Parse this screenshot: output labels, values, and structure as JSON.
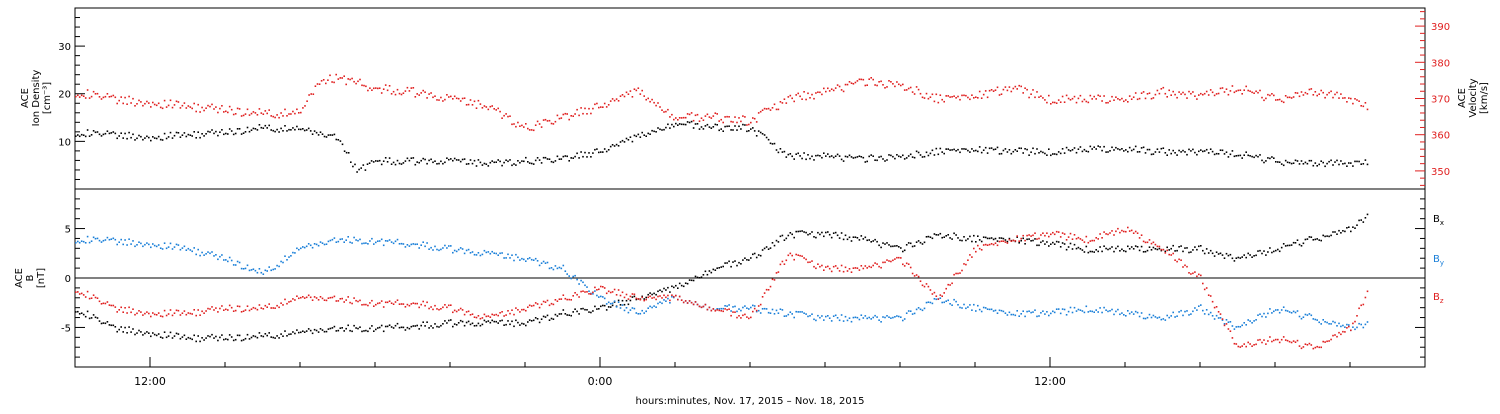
{
  "chart_data": [
    {
      "type": "scatter",
      "panel": "top",
      "ylabel_left": [
        "ACE",
        "Ion Density",
        "[cm⁻³]"
      ],
      "ylabel_right": [
        "ACE",
        "Velocity",
        "[km/s]"
      ],
      "yticks_left": [
        "10",
        "20",
        "30"
      ],
      "yticks_right": [
        "350",
        "360",
        "370",
        "380",
        "390"
      ],
      "ylim_left": [
        0,
        38
      ],
      "ylim_right": [
        345,
        395
      ],
      "series": [
        {
          "axis": "left",
          "color": "#000000",
          "points": [
            [
              0,
              12
            ],
            [
              1,
              11.5
            ],
            [
              2,
              11
            ],
            [
              3,
              11.5
            ],
            [
              4,
              12
            ],
            [
              5,
              13
            ],
            [
              6,
              12.5
            ],
            [
              7,
              11
            ],
            [
              7.5,
              4
            ],
            [
              8,
              6
            ],
            [
              9,
              6
            ],
            [
              10,
              6
            ],
            [
              11,
              5.5
            ],
            [
              12,
              6
            ],
            [
              13,
              6.5
            ],
            [
              14,
              8
            ],
            [
              15,
              11
            ],
            [
              16,
              14
            ],
            [
              17,
              13
            ],
            [
              18,
              13
            ],
            [
              19,
              7
            ],
            [
              20,
              7
            ],
            [
              21,
              6.5
            ],
            [
              22,
              7
            ],
            [
              23,
              8
            ],
            [
              24,
              8.5
            ],
            [
              25,
              8
            ],
            [
              26,
              8
            ],
            [
              27,
              8.5
            ],
            [
              28,
              8.5
            ],
            [
              29,
              8
            ],
            [
              30,
              8
            ],
            [
              31,
              7.5
            ],
            [
              32,
              6
            ],
            [
              33,
              5.5
            ],
            [
              34,
              5.5
            ],
            [
              34.5,
              6
            ]
          ]
        },
        {
          "axis": "right",
          "color": "#e02020",
          "points": [
            [
              0,
              372
            ],
            [
              1,
              370
            ],
            [
              2,
              369
            ],
            [
              3,
              368
            ],
            [
              4,
              367
            ],
            [
              5,
              366
            ],
            [
              6,
              366
            ],
            [
              6.5,
              375
            ],
            [
              7,
              376
            ],
            [
              8,
              373
            ],
            [
              9,
              372
            ],
            [
              10,
              370
            ],
            [
              11,
              368
            ],
            [
              12,
              362
            ],
            [
              13,
              365
            ],
            [
              14,
              368
            ],
            [
              15,
              372
            ],
            [
              16,
              365
            ],
            [
              17,
              365
            ],
            [
              18,
              364
            ],
            [
              19,
              370
            ],
            [
              20,
              372
            ],
            [
              21,
              375
            ],
            [
              22,
              374
            ],
            [
              23,
              370
            ],
            [
              24,
              371
            ],
            [
              25,
              373
            ],
            [
              26,
              370
            ],
            [
              27,
              370
            ],
            [
              28,
              370
            ],
            [
              29,
              372
            ],
            [
              30,
              371
            ],
            [
              31,
              373
            ],
            [
              32,
              370
            ],
            [
              33,
              372
            ],
            [
              34,
              370
            ],
            [
              34.5,
              368
            ]
          ]
        }
      ]
    },
    {
      "type": "scatter",
      "panel": "bottom",
      "ylabel_left": [
        "ACE",
        "B",
        "[nT]"
      ],
      "yticks_left": [
        "-5",
        "0",
        "5"
      ],
      "ylim": [
        -9,
        9
      ],
      "xlabel": "hours:minutes, Nov. 17, 2015 – Nov. 18, 2015",
      "xticks": [
        "12:00",
        "0:00",
        "12:00"
      ],
      "xtick_hours": [
        2,
        14,
        26
      ],
      "xlim_hours": [
        0,
        36
      ],
      "legend_placement": "right",
      "series": [
        {
          "name": "B",
          "sub": "x",
          "color": "#000000",
          "points": [
            [
              0,
              -3
            ],
            [
              1,
              -5
            ],
            [
              2,
              -5.5
            ],
            [
              3,
              -6
            ],
            [
              4,
              -6
            ],
            [
              5,
              -5.8
            ],
            [
              6,
              -5.5
            ],
            [
              7,
              -5
            ],
            [
              8,
              -5
            ],
            [
              9,
              -4.8
            ],
            [
              10,
              -4.5
            ],
            [
              11,
              -4.5
            ],
            [
              12,
              -4.5
            ],
            [
              13,
              -3.5
            ],
            [
              14,
              -3
            ],
            [
              15,
              -2
            ],
            [
              16,
              -1
            ],
            [
              17,
              1
            ],
            [
              18,
              2
            ],
            [
              19,
              4.5
            ],
            [
              20,
              4.5
            ],
            [
              21,
              4
            ],
            [
              22,
              3
            ],
            [
              23,
              4.5
            ],
            [
              24,
              4
            ],
            [
              25,
              4
            ],
            [
              26,
              3.5
            ],
            [
              27,
              3
            ],
            [
              28,
              3
            ],
            [
              29,
              3
            ],
            [
              30,
              3
            ],
            [
              31,
              2
            ],
            [
              32,
              3
            ],
            [
              33,
              4
            ],
            [
              34,
              5
            ],
            [
              34.5,
              6.5
            ]
          ]
        },
        {
          "name": "B",
          "sub": "y",
          "color": "#1a7fd8",
          "points": [
            [
              0,
              4
            ],
            [
              1,
              3.8
            ],
            [
              2,
              3.5
            ],
            [
              3,
              3
            ],
            [
              4,
              2
            ],
            [
              5,
              0.5
            ],
            [
              6,
              3
            ],
            [
              7,
              4
            ],
            [
              8,
              3.8
            ],
            [
              9,
              3.5
            ],
            [
              10,
              3
            ],
            [
              11,
              2.5
            ],
            [
              12,
              2
            ],
            [
              13,
              1
            ],
            [
              14,
              -2
            ],
            [
              15,
              -3.5
            ],
            [
              16,
              -2
            ],
            [
              17,
              -3
            ],
            [
              18,
              -3
            ],
            [
              19,
              -3.5
            ],
            [
              20,
              -4
            ],
            [
              21,
              -4
            ],
            [
              22,
              -4
            ],
            [
              23,
              -2
            ],
            [
              24,
              -3
            ],
            [
              25,
              -3.5
            ],
            [
              26,
              -3.5
            ],
            [
              27,
              -3
            ],
            [
              28,
              -3.5
            ],
            [
              29,
              -4
            ],
            [
              30,
              -3
            ],
            [
              31,
              -5
            ],
            [
              32,
              -3
            ],
            [
              33,
              -4
            ],
            [
              34,
              -5
            ],
            [
              34.5,
              -4.5
            ]
          ]
        },
        {
          "name": "B",
          "sub": "z",
          "color": "#e02020",
          "points": [
            [
              0,
              -1
            ],
            [
              1,
              -3
            ],
            [
              2,
              -3.5
            ],
            [
              3,
              -3.5
            ],
            [
              4,
              -3
            ],
            [
              5,
              -3
            ],
            [
              6,
              -2
            ],
            [
              7,
              -2
            ],
            [
              8,
              -2.5
            ],
            [
              9,
              -2.5
            ],
            [
              10,
              -3
            ],
            [
              11,
              -4
            ],
            [
              12,
              -3
            ],
            [
              13,
              -2
            ],
            [
              14,
              -1
            ],
            [
              15,
              -2
            ],
            [
              16,
              -2
            ],
            [
              17,
              -3
            ],
            [
              18,
              -4
            ],
            [
              19,
              2.5
            ],
            [
              20,
              1
            ],
            [
              21,
              1
            ],
            [
              22,
              2
            ],
            [
              23,
              -2
            ],
            [
              24,
              3
            ],
            [
              25,
              4
            ],
            [
              26,
              4.5
            ],
            [
              27,
              4
            ],
            [
              28,
              5
            ],
            [
              29,
              3
            ],
            [
              30,
              0
            ],
            [
              31,
              -7
            ],
            [
              32,
              -6
            ],
            [
              33,
              -7
            ],
            [
              34,
              -5
            ],
            [
              34.5,
              -1
            ]
          ]
        }
      ]
    }
  ]
}
